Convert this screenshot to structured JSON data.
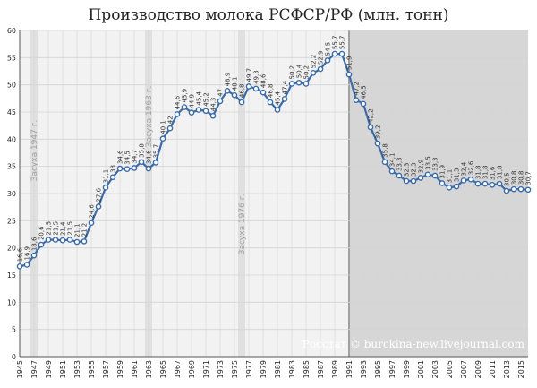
{
  "chart_data": {
    "type": "line",
    "title": "Производство молока РСФСР/РФ (млн. тонн)",
    "source": "Росстат © burckina-new.livejournal.com",
    "ylim": [
      0,
      60
    ],
    "yticks": [
      0,
      5,
      10,
      15,
      20,
      25,
      30,
      35,
      40,
      45,
      50,
      55,
      60
    ],
    "xlim": [
      1945,
      2016
    ],
    "xticks": [
      1945,
      1947,
      1949,
      1951,
      1953,
      1955,
      1957,
      1959,
      1961,
      1963,
      1965,
      1967,
      1969,
      1971,
      1973,
      1975,
      1977,
      1979,
      1981,
      1983,
      1985,
      1987,
      1989,
      1991,
      1993,
      1995,
      1997,
      1999,
      2001,
      2003,
      2005,
      2007,
      2009,
      2011,
      2013,
      2015
    ],
    "grid": true,
    "annotations": [
      {
        "label": "Засуха 1947 г.",
        "year": 1947
      },
      {
        "label": "Засуха 1963 г.",
        "year": 1963
      },
      {
        "label": "Засуха 1976 г.",
        "year": 1976
      }
    ],
    "shaded_period_start": 1991,
    "colors": {
      "line": "#3a6aa8",
      "marker_fill": "#ffffff",
      "marker_edge": "#3a6aa8",
      "grid": "#d4d4d4",
      "plot_bg": "#f2f2f2",
      "post1991_bg": "#d6d6d6",
      "drought_band": "#e0e0e0"
    },
    "series": [
      {
        "x": [
          1945,
          1946,
          1947,
          1948,
          1949,
          1950,
          1951,
          1952,
          1953,
          1954,
          1955,
          1956,
          1957,
          1958,
          1959,
          1960,
          1961,
          1962,
          1963,
          1964,
          1965,
          1966,
          1967,
          1968,
          1969,
          1970,
          1971,
          1972,
          1973,
          1974,
          1975,
          1976,
          1977,
          1978,
          1979,
          1980,
          1981,
          1982,
          1983,
          1984,
          1985,
          1986,
          1987,
          1988,
          1989,
          1990,
          1991,
          1992,
          1993,
          1994,
          1995,
          1996,
          1997,
          1998,
          1999,
          2000,
          2001,
          2002,
          2003,
          2004,
          2005,
          2006,
          2007,
          2008,
          2009,
          2010,
          2011,
          2012,
          2013,
          2014,
          2015,
          2016
        ],
        "values": [
          16.6,
          16.9,
          18.6,
          20.6,
          21.5,
          21.5,
          21.4,
          21.5,
          21.1,
          21.2,
          24.6,
          27.6,
          31.1,
          33.0,
          34.6,
          34.5,
          34.7,
          35.8,
          34.6,
          35.7,
          40.1,
          42.0,
          44.6,
          45.9,
          44.9,
          45.4,
          45.2,
          44.3,
          47.0,
          48.9,
          48.1,
          46.8,
          49.7,
          49.3,
          48.6,
          46.8,
          45.4,
          47.4,
          50.2,
          50.4,
          50.2,
          52.2,
          52.9,
          54.5,
          55.7,
          55.7,
          51.9,
          47.2,
          46.5,
          42.2,
          39.2,
          35.8,
          34.1,
          33.3,
          32.3,
          32.3,
          32.9,
          33.5,
          33.3,
          31.9,
          31.1,
          31.3,
          32.4,
          32.6,
          31.8,
          31.8,
          31.6,
          31.8,
          30.5,
          30.8,
          30.8,
          30.7
        ]
      }
    ]
  }
}
